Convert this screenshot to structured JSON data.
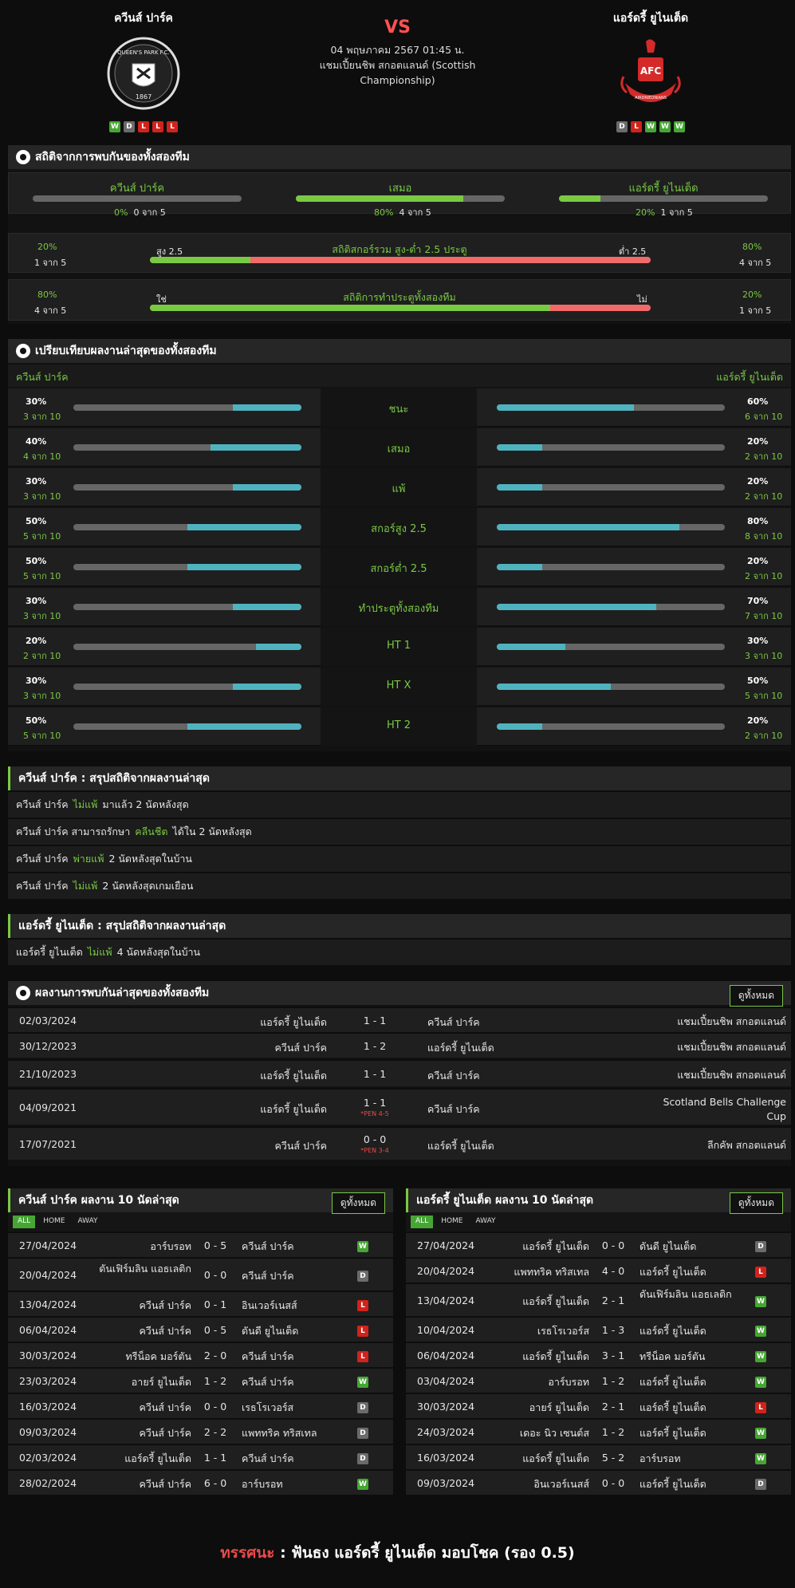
{
  "header": {
    "home": {
      "name": "ควีนส์ ปาร์ค",
      "form": [
        "W",
        "D",
        "L",
        "L",
        "L"
      ],
      "crest_text": "QUEEN'S PARK F.C.",
      "crest_year": "1867"
    },
    "away": {
      "name": "แอร์ดรี้ ยูไนเต็ด",
      "form": [
        "D",
        "L",
        "W",
        "W",
        "W"
      ],
      "crest_text": "AFC",
      "crest_sub": "AIRDRIEONIANS"
    },
    "vs": "VS",
    "datetime": "04 พฤษภาคม 2567 01:45 น.",
    "league": "แชมเปี้ยนชิพ สกอตแลนด์ (Scottish Championship)"
  },
  "h2h": {
    "title": "สถิติจากการพบกันของทั้งสองทีม",
    "win_home": {
      "label": "ควีนส์ ปาร์ค",
      "pct": "0%",
      "of": "0 จาก 5",
      "fill": 0
    },
    "draw": {
      "label": "เสมอ",
      "pct": "80%",
      "of": "4 จาก 5",
      "fill": 0.8
    },
    "win_away": {
      "label": "แอร์ดรี้ ยูไนเต็ด",
      "pct": "20%",
      "of": "1 จาก 5",
      "fill": 0.2
    },
    "ou": {
      "left_pct": "20%",
      "left_of": "1 จาก 5",
      "left_lbl": "สูง 2.5",
      "title": "สถิติสกอร์รวม สูง-ต่ำ 2.5 ประตู",
      "right_lbl": "ต่ำ 2.5",
      "right_pct": "80%",
      "right_of": "4 จาก 5",
      "fill": 0.2
    },
    "btts": {
      "left_pct": "80%",
      "left_of": "4 จาก 5",
      "left_lbl": "ใช่",
      "title": "สถิติการทำประตูทั้งสองทีม",
      "right_lbl": "ไม่",
      "right_pct": "20%",
      "right_of": "1 จาก 5",
      "fill": 0.8
    }
  },
  "compare": {
    "title": "เปรียบเทียบผลงานล่าสุดของทั้งสองทีม",
    "home": "ควีนส์ ปาร์ค",
    "away": "แอร์ดรี้ ยูไนเต็ด",
    "rows": [
      {
        "label": "ชนะ",
        "hp": "30%",
        "ho": "3 จาก 10",
        "hf": 0.3,
        "ap": "60%",
        "ao": "6 จาก 10",
        "af": 0.6
      },
      {
        "label": "เสมอ",
        "hp": "40%",
        "ho": "4 จาก 10",
        "hf": 0.4,
        "ap": "20%",
        "ao": "2 จาก 10",
        "af": 0.2
      },
      {
        "label": "แพ้",
        "hp": "30%",
        "ho": "3 จาก 10",
        "hf": 0.3,
        "ap": "20%",
        "ao": "2 จาก 10",
        "af": 0.2
      },
      {
        "label": "สกอร์สูง 2.5",
        "hp": "50%",
        "ho": "5 จาก 10",
        "hf": 0.5,
        "ap": "80%",
        "ao": "8 จาก 10",
        "af": 0.8
      },
      {
        "label": "สกอร์ต่ำ 2.5",
        "hp": "50%",
        "ho": "5 จาก 10",
        "hf": 0.5,
        "ap": "20%",
        "ao": "2 จาก 10",
        "af": 0.2
      },
      {
        "label": "ทำประตูทั้งสองทีม",
        "hp": "30%",
        "ho": "3 จาก 10",
        "hf": 0.3,
        "ap": "70%",
        "ao": "7 จาก 10",
        "af": 0.7
      },
      {
        "label": "HT 1",
        "hp": "20%",
        "ho": "2 จาก 10",
        "hf": 0.2,
        "ap": "30%",
        "ao": "3 จาก 10",
        "af": 0.3
      },
      {
        "label": "HT X",
        "hp": "30%",
        "ho": "3 จาก 10",
        "hf": 0.3,
        "ap": "50%",
        "ao": "5 จาก 10",
        "af": 0.5
      },
      {
        "label": "HT 2",
        "hp": "50%",
        "ho": "5 จาก 10",
        "hf": 0.5,
        "ap": "20%",
        "ao": "2 จาก 10",
        "af": 0.2
      }
    ]
  },
  "summary_home": {
    "title": "ควีนส์ ปาร์ค : สรุปสถิติจากผลงานล่าสุด",
    "rows": [
      {
        "a": "ควีนส์ ปาร์ค",
        "hl": "ไม่แพ้",
        "b": "มาแล้ว 2 นัดหลังสุด"
      },
      {
        "a": "ควีนส์ ปาร์ค  สามารถรักษา",
        "hl": "คลีนชีต",
        "b": "ได้ใน 2 นัดหลังสุด"
      },
      {
        "a": "ควีนส์ ปาร์ค",
        "hl": "พ่ายแพ้",
        "b": "2  นัดหลังสุดในบ้าน"
      },
      {
        "a": "ควีนส์ ปาร์ค",
        "hl": "ไม่แพ้",
        "b": "2  นัดหลังสุดเกมเยือน"
      }
    ]
  },
  "summary_away": {
    "title": "แอร์ดรี้ ยูไนเต็ด : สรุปสถิติจากผลงานล่าสุด",
    "rows": [
      {
        "a": "แอร์ดรี้ ยูไนเต็ด",
        "hl": "ไม่แพ้",
        "b": "4  นัดหลังสุดในบ้าน"
      }
    ]
  },
  "h2h_results": {
    "title": "ผลงานการพบกันล่าสุดของทั้งสองทีม",
    "view_all": "ดูทั้งหมด",
    "rows": [
      {
        "date": "02/03/2024",
        "home": "แอร์ดรี้ ยูไนเต็ด",
        "score": "1 - 1",
        "pen": "",
        "away": "ควีนส์ ปาร์ค",
        "comp": "แชมเปี้ยนชิพ สกอตแลนด์"
      },
      {
        "date": "30/12/2023",
        "home": "ควีนส์ ปาร์ค",
        "score": "1 - 2",
        "pen": "",
        "away": "แอร์ดรี้ ยูไนเต็ด",
        "comp": "แชมเปี้ยนชิพ สกอตแลนด์"
      },
      {
        "date": "21/10/2023",
        "home": "แอร์ดรี้ ยูไนเต็ด",
        "score": "1 - 1",
        "pen": "",
        "away": "ควีนส์ ปาร์ค",
        "comp": "แชมเปี้ยนชิพ สกอตแลนด์"
      },
      {
        "date": "04/09/2021",
        "home": "แอร์ดรี้ ยูไนเต็ด",
        "score": "1 - 1",
        "pen": "*PEN 4-5",
        "away": "ควีนส์ ปาร์ค",
        "comp": "Scotland Bells Challenge Cup"
      },
      {
        "date": "17/07/2021",
        "home": "ควีนส์ ปาร์ค",
        "score": "0 - 0",
        "pen": "*PEN 3-4",
        "away": "แอร์ดรี้ ยูไนเต็ด",
        "comp": "ลีกคัพ สกอตแลนด์"
      }
    ]
  },
  "last10_home": {
    "title": "ควีนส์ ปาร์ค ผลงาน 10 นัดล่าสุด",
    "view_all": "ดูทั้งหมด",
    "tabs": [
      "ALL",
      "HOME",
      "AWAY"
    ],
    "rows": [
      {
        "date": "27/04/2024",
        "home": "อาร์บรอท",
        "score": "0 - 5",
        "away": "ควีนส์ ปาร์ค",
        "res": "W"
      },
      {
        "date": "20/04/2024",
        "home": "ดันเฟิร์มลิน แอธเลติก",
        "score": "0 - 0",
        "away": "ควีนส์ ปาร์ค",
        "res": "D"
      },
      {
        "date": "13/04/2024",
        "home": "ควีนส์ ปาร์ค",
        "score": "0 - 1",
        "away": "อินเวอร์เนสส์",
        "res": "L"
      },
      {
        "date": "06/04/2024",
        "home": "ควีนส์ ปาร์ค",
        "score": "0 - 5",
        "away": "ดันดี ยูไนเต็ด",
        "res": "L"
      },
      {
        "date": "30/03/2024",
        "home": "ทรีน็อค มอร์ตัน",
        "score": "2 - 0",
        "away": "ควีนส์ ปาร์ค",
        "res": "L"
      },
      {
        "date": "23/03/2024",
        "home": "อายร์ ยูไนเต็ด",
        "score": "1 - 2",
        "away": "ควีนส์ ปาร์ค",
        "res": "W"
      },
      {
        "date": "16/03/2024",
        "home": "ควีนส์ ปาร์ค",
        "score": "0 - 0",
        "away": "เรธโรเวอร์ส",
        "res": "D"
      },
      {
        "date": "09/03/2024",
        "home": "ควีนส์ ปาร์ค",
        "score": "2 - 2",
        "away": "แพททริค ทริสเทล",
        "res": "D"
      },
      {
        "date": "02/03/2024",
        "home": "แอร์ดรี้ ยูไนเต็ด",
        "score": "1 - 1",
        "away": "ควีนส์ ปาร์ค",
        "res": "D"
      },
      {
        "date": "28/02/2024",
        "home": "ควีนส์ ปาร์ค",
        "score": "6 - 0",
        "away": "อาร์บรอท",
        "res": "W"
      }
    ]
  },
  "last10_away": {
    "title": "แอร์ดรี้ ยูไนเต็ด ผลงาน 10 นัดล่าสุด",
    "view_all": "ดูทั้งหมด",
    "tabs": [
      "ALL",
      "HOME",
      "AWAY"
    ],
    "rows": [
      {
        "date": "27/04/2024",
        "home": "แอร์ดรี้ ยูไนเต็ด",
        "score": "0 - 0",
        "away": "ดันดี ยูไนเต็ด",
        "res": "D"
      },
      {
        "date": "20/04/2024",
        "home": "แพททริค ทริสเทล",
        "score": "4 - 0",
        "away": "แอร์ดรี้ ยูไนเต็ด",
        "res": "L"
      },
      {
        "date": "13/04/2024",
        "home": "แอร์ดรี้ ยูไนเต็ด",
        "score": "2 - 1",
        "away": "ดันเฟิร์มลิน แอธเลติก",
        "res": "W"
      },
      {
        "date": "10/04/2024",
        "home": "เรธโรเวอร์ส",
        "score": "1 - 3",
        "away": "แอร์ดรี้ ยูไนเต็ด",
        "res": "W"
      },
      {
        "date": "06/04/2024",
        "home": "แอร์ดรี้ ยูไนเต็ด",
        "score": "3 - 1",
        "away": "ทรีน็อค มอร์ตัน",
        "res": "W"
      },
      {
        "date": "03/04/2024",
        "home": "อาร์บรอท",
        "score": "1 - 2",
        "away": "แอร์ดรี้ ยูไนเต็ด",
        "res": "W"
      },
      {
        "date": "30/03/2024",
        "home": "อายร์ ยูไนเต็ด",
        "score": "2 - 1",
        "away": "แอร์ดรี้ ยูไนเต็ด",
        "res": "L"
      },
      {
        "date": "24/03/2024",
        "home": "เดอะ นิว เซนต์ส",
        "score": "1 - 2",
        "away": "แอร์ดรี้ ยูไนเต็ด",
        "res": "W"
      },
      {
        "date": "16/03/2024",
        "home": "แอร์ดรี้ ยูไนเต็ด",
        "score": "5 - 2",
        "away": "อาร์บรอท",
        "res": "W"
      },
      {
        "date": "09/03/2024",
        "home": "อินเวอร์เนสส์",
        "score": "0 - 0",
        "away": "แอร์ดรี้ ยูไนเต็ด",
        "res": "D"
      }
    ]
  },
  "tip": {
    "label": "ทรรศนะ",
    "sep": ":",
    "text": "ฟันธง แอร์ดรี้ ยูไนเต็ด มอบโชค (รอง 0.5)"
  }
}
